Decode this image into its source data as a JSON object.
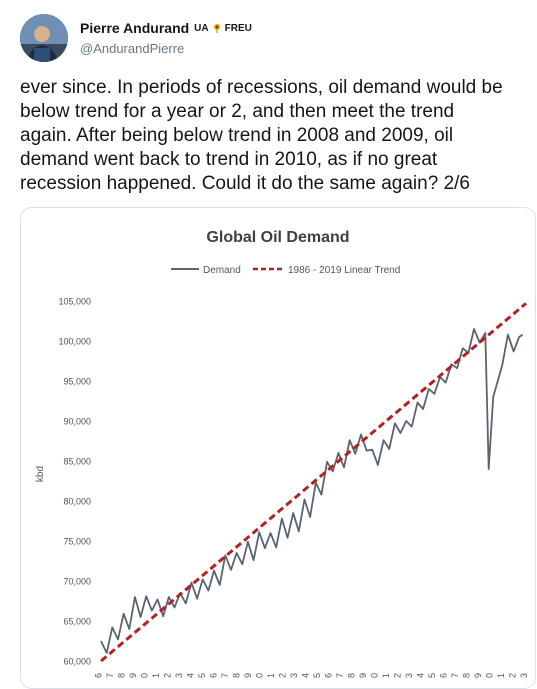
{
  "user": {
    "display_name": "Pierre Andurand",
    "tag_ua": "UA",
    "tag_freu": "FREU",
    "handle": "@AndurandPierre"
  },
  "tweet": {
    "lines": [
      "ever since. In periods of recessions, oil demand would be",
      "below trend for a year or 2, and then meet the trend",
      "again. After being below trend in 2008 and 2009, oil",
      "demand went back to trend in 2010, as if no great",
      "recession happened. Could it do the same again? 2/6"
    ]
  },
  "chart_data": {
    "type": "line",
    "title": "Global Oil Demand",
    "ylabel": "kbd",
    "ylim": [
      60000,
      105000
    ],
    "yticks": [
      60000,
      65000,
      70000,
      75000,
      80000,
      85000,
      90000,
      95000,
      100000,
      105000
    ],
    "ytick_labels": [
      "60,000",
      "65,000",
      "70,000",
      "75,000",
      "80,000",
      "85,000",
      "90,000",
      "95,000",
      "100,000",
      "105,000"
    ],
    "xlim": [
      1986,
      2023.6
    ],
    "xtick_labels": [
      "6",
      "7",
      "8",
      "9",
      "0",
      "1",
      "2",
      "3",
      "4",
      "5",
      "6",
      "7",
      "8",
      "9",
      "0",
      "1",
      "2",
      "3",
      "4",
      "5",
      "6",
      "7",
      "8",
      "9",
      "0",
      "1",
      "2",
      "3",
      "4",
      "5",
      "6",
      "7",
      "8",
      "9",
      "0",
      "1",
      "2",
      "3"
    ],
    "legend_position": "top-center",
    "series": [
      {
        "name": "Demand",
        "color": "#5a6470",
        "style": "solid",
        "x": [
          1986.0,
          1986.5,
          1987.0,
          1987.5,
          1988.0,
          1988.5,
          1989.0,
          1989.5,
          1990.0,
          1990.5,
          1991.0,
          1991.5,
          1992.0,
          1992.5,
          1993.0,
          1993.5,
          1994.0,
          1994.5,
          1995.0,
          1995.5,
          1996.0,
          1996.5,
          1997.0,
          1997.5,
          1998.0,
          1998.5,
          1999.0,
          1999.5,
          2000.0,
          2000.5,
          2001.0,
          2001.5,
          2002.0,
          2002.5,
          2003.0,
          2003.5,
          2004.0,
          2004.5,
          2005.0,
          2005.5,
          2006.0,
          2006.5,
          2007.0,
          2007.5,
          2008.0,
          2008.5,
          2009.0,
          2009.5,
          2010.0,
          2010.5,
          2011.0,
          2011.5,
          2012.0,
          2012.5,
          2013.0,
          2013.5,
          2014.0,
          2014.5,
          2015.0,
          2015.5,
          2016.0,
          2016.5,
          2017.0,
          2017.5,
          2018.0,
          2018.5,
          2019.0,
          2019.5,
          2020.0,
          2020.3,
          2020.7,
          2021.0,
          2021.5,
          2022.0,
          2022.5,
          2023.0,
          2023.3
        ],
        "y": [
          62500,
          61000,
          64200,
          62700,
          65900,
          64000,
          68000,
          65500,
          68100,
          66300,
          67700,
          65600,
          68000,
          66700,
          68500,
          67200,
          69800,
          67800,
          70200,
          68800,
          71300,
          69500,
          73200,
          71400,
          73500,
          72100,
          74900,
          72600,
          76100,
          74100,
          76000,
          74200,
          77800,
          75400,
          78500,
          76200,
          80200,
          78000,
          82300,
          80800,
          84900,
          83700,
          86000,
          84200,
          87600,
          85900,
          88300,
          86300,
          86400,
          84500,
          87600,
          86500,
          89700,
          88500,
          90000,
          89300,
          92300,
          91500,
          94000,
          93400,
          95500,
          94800,
          97100,
          96600,
          99100,
          98500,
          101500,
          99800,
          101000,
          84000,
          93000,
          94500,
          97000,
          100800,
          98700,
          100500,
          100800
        ]
      },
      {
        "name": "1986 - 2019 Linear Trend",
        "color": "#b22222",
        "style": "dashed",
        "x": [
          1986.0,
          2023.6
        ],
        "y": [
          60000,
          104700
        ]
      }
    ]
  }
}
